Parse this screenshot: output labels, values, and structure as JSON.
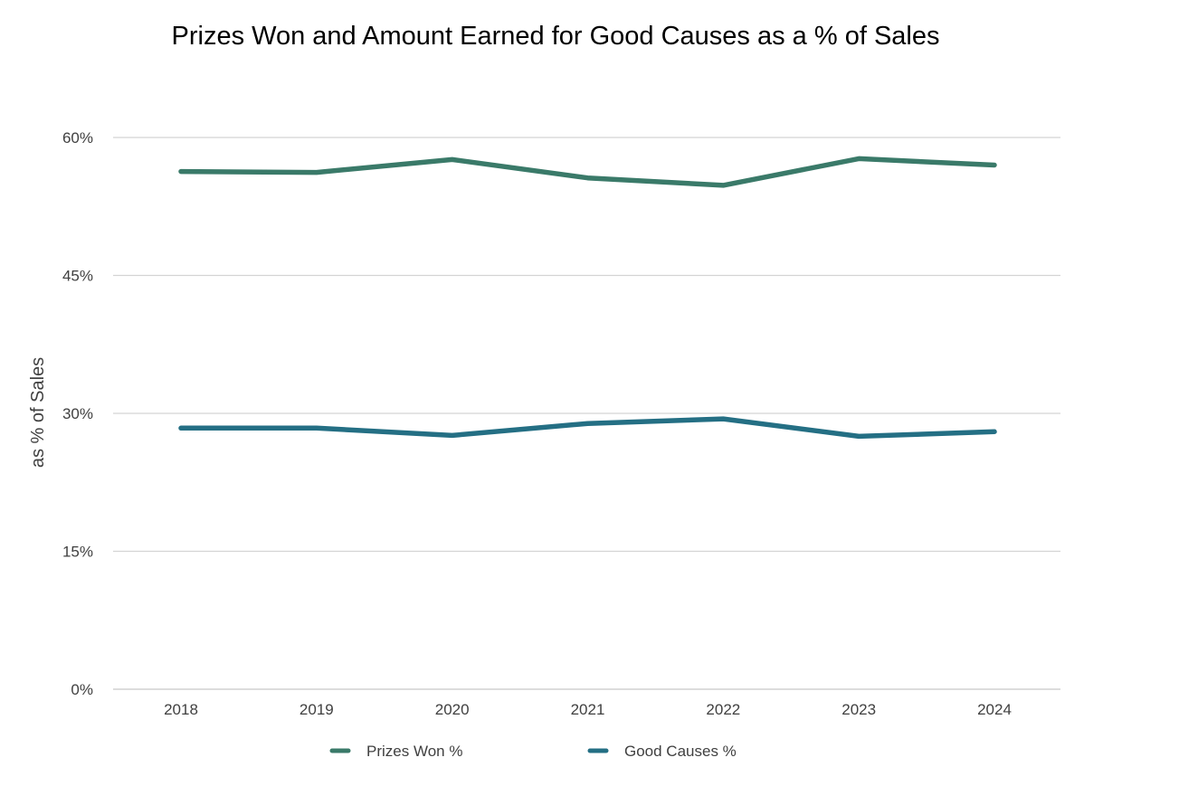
{
  "chart_data": {
    "type": "line",
    "title": "Prizes Won and Amount Earned for Good Causes as a % of Sales",
    "xlabel": "",
    "ylabel": "as % of Sales",
    "categories": [
      "2018",
      "2019",
      "2020",
      "2021",
      "2022",
      "2023",
      "2024"
    ],
    "ylim": [
      0,
      60
    ],
    "yticks": [
      0,
      15,
      30,
      45,
      60
    ],
    "ytick_labels": [
      "0%",
      "15%",
      "30%",
      "45%",
      "60%"
    ],
    "grid": true,
    "legend_position": "bottom",
    "series": [
      {
        "name": "Prizes Won %",
        "color": "#3a7a69",
        "values": [
          56.3,
          56.2,
          57.6,
          55.6,
          54.8,
          57.7,
          57.0
        ]
      },
      {
        "name": "Good Causes %",
        "color": "#246f84",
        "values": [
          28.4,
          28.4,
          27.6,
          28.9,
          29.4,
          27.5,
          28.0
        ]
      }
    ]
  }
}
